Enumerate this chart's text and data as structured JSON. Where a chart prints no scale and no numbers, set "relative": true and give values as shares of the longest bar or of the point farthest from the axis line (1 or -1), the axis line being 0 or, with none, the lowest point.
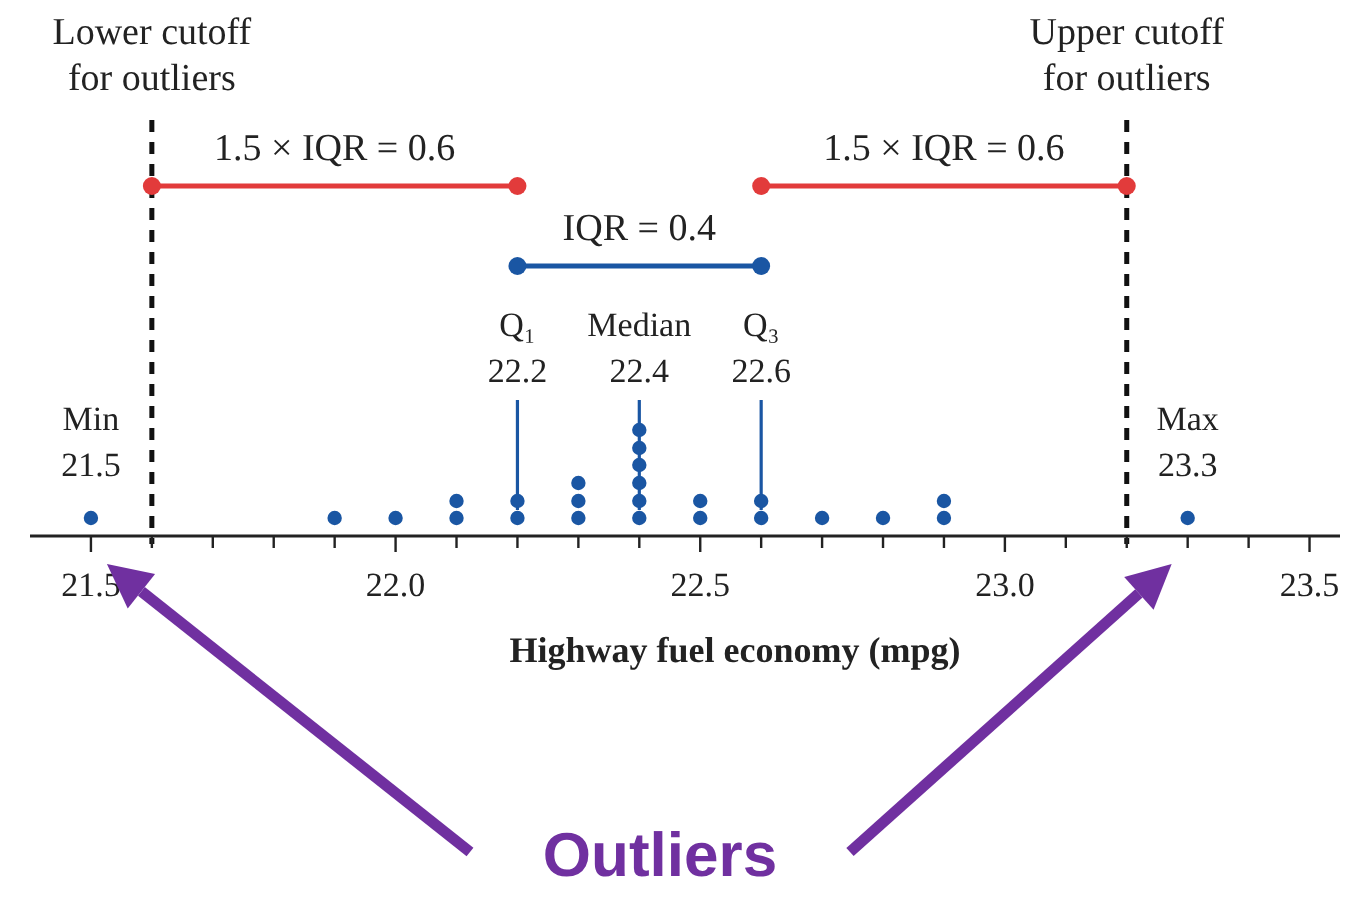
{
  "chart_data": {
    "type": "scatter",
    "relative": true,
    "xlabel": "Highway fuel economy (mpg)",
    "xlim": [
      21.4,
      23.55
    ],
    "xticks": [
      21.5,
      {
        "value": 21.6,
        "label": null
      },
      {
        "value": 21.7,
        "label": null
      },
      {
        "value": 21.8,
        "label": null
      },
      {
        "value": 21.9,
        "label": null
      },
      "22.0",
      {
        "value": 22.1,
        "label": null
      },
      {
        "value": 22.2,
        "label": null
      },
      {
        "value": 22.3,
        "label": null
      },
      {
        "value": 22.4,
        "label": null
      },
      22.5,
      {
        "value": 22.6,
        "label": null
      },
      {
        "value": 22.7,
        "label": null
      },
      {
        "value": 22.8,
        "label": null
      },
      {
        "value": 22.9,
        "label": null
      },
      "23.0",
      {
        "value": 23.1,
        "label": null
      },
      {
        "value": 23.2,
        "label": null
      },
      {
        "value": 23.3,
        "label": null
      },
      {
        "value": 23.4,
        "label": null
      },
      23.5
    ],
    "x": [
      21.5,
      21.9,
      22.0,
      22.1,
      22.1,
      22.2,
      22.2,
      22.3,
      22.3,
      22.3,
      22.4,
      22.4,
      22.4,
      22.4,
      22.4,
      22.4,
      22.5,
      22.5,
      22.6,
      22.6,
      22.7,
      22.8,
      22.9,
      22.9,
      23.3
    ],
    "values": [
      0.17,
      0.17,
      0.17,
      0.17,
      0.33,
      0.17,
      0.33,
      0.17,
      0.33,
      0.5,
      0.17,
      0.33,
      0.5,
      0.67,
      0.83,
      1,
      0.17,
      0.33,
      0.17,
      0.33,
      0.17,
      0.17,
      0.17,
      0.33,
      0.17
    ],
    "color": "#1a56a3",
    "marker": "circle",
    "tick_labels": "x",
    "ref_lines": [
      {
        "axis": "x",
        "value": 21.6,
        "label": "Lower cutoff\nfor outliers",
        "line_style": "dashed",
        "color": "#111111"
      },
      {
        "axis": "x",
        "value": 23.2,
        "label": "Upper cutoff\nfor outliers",
        "line_style": "dashed",
        "color": "#111111"
      },
      {
        "axis": "x",
        "value": 22.2,
        "label": "Q₁\n22.2",
        "line_style": "solid",
        "color": "#1a56a3"
      },
      {
        "axis": "x",
        "value": 22.4,
        "label": "Median\n22.4",
        "line_style": "solid",
        "color": "#1a56a3"
      },
      {
        "axis": "x",
        "value": 22.6,
        "label": "Q₃\n22.6",
        "line_style": "solid",
        "color": "#1a56a3"
      }
    ],
    "annotations": [
      "1.5 × IQR = 0.6",
      "IQR = 0.4",
      "1.5 × IQR = 0.6",
      {
        "text": "Min\n21.5",
        "x": 21.5,
        "y": 0.17
      },
      {
        "text": "Max\n23.3",
        "x": 23.3,
        "y": 0.17
      },
      "Outliers"
    ]
  }
}
